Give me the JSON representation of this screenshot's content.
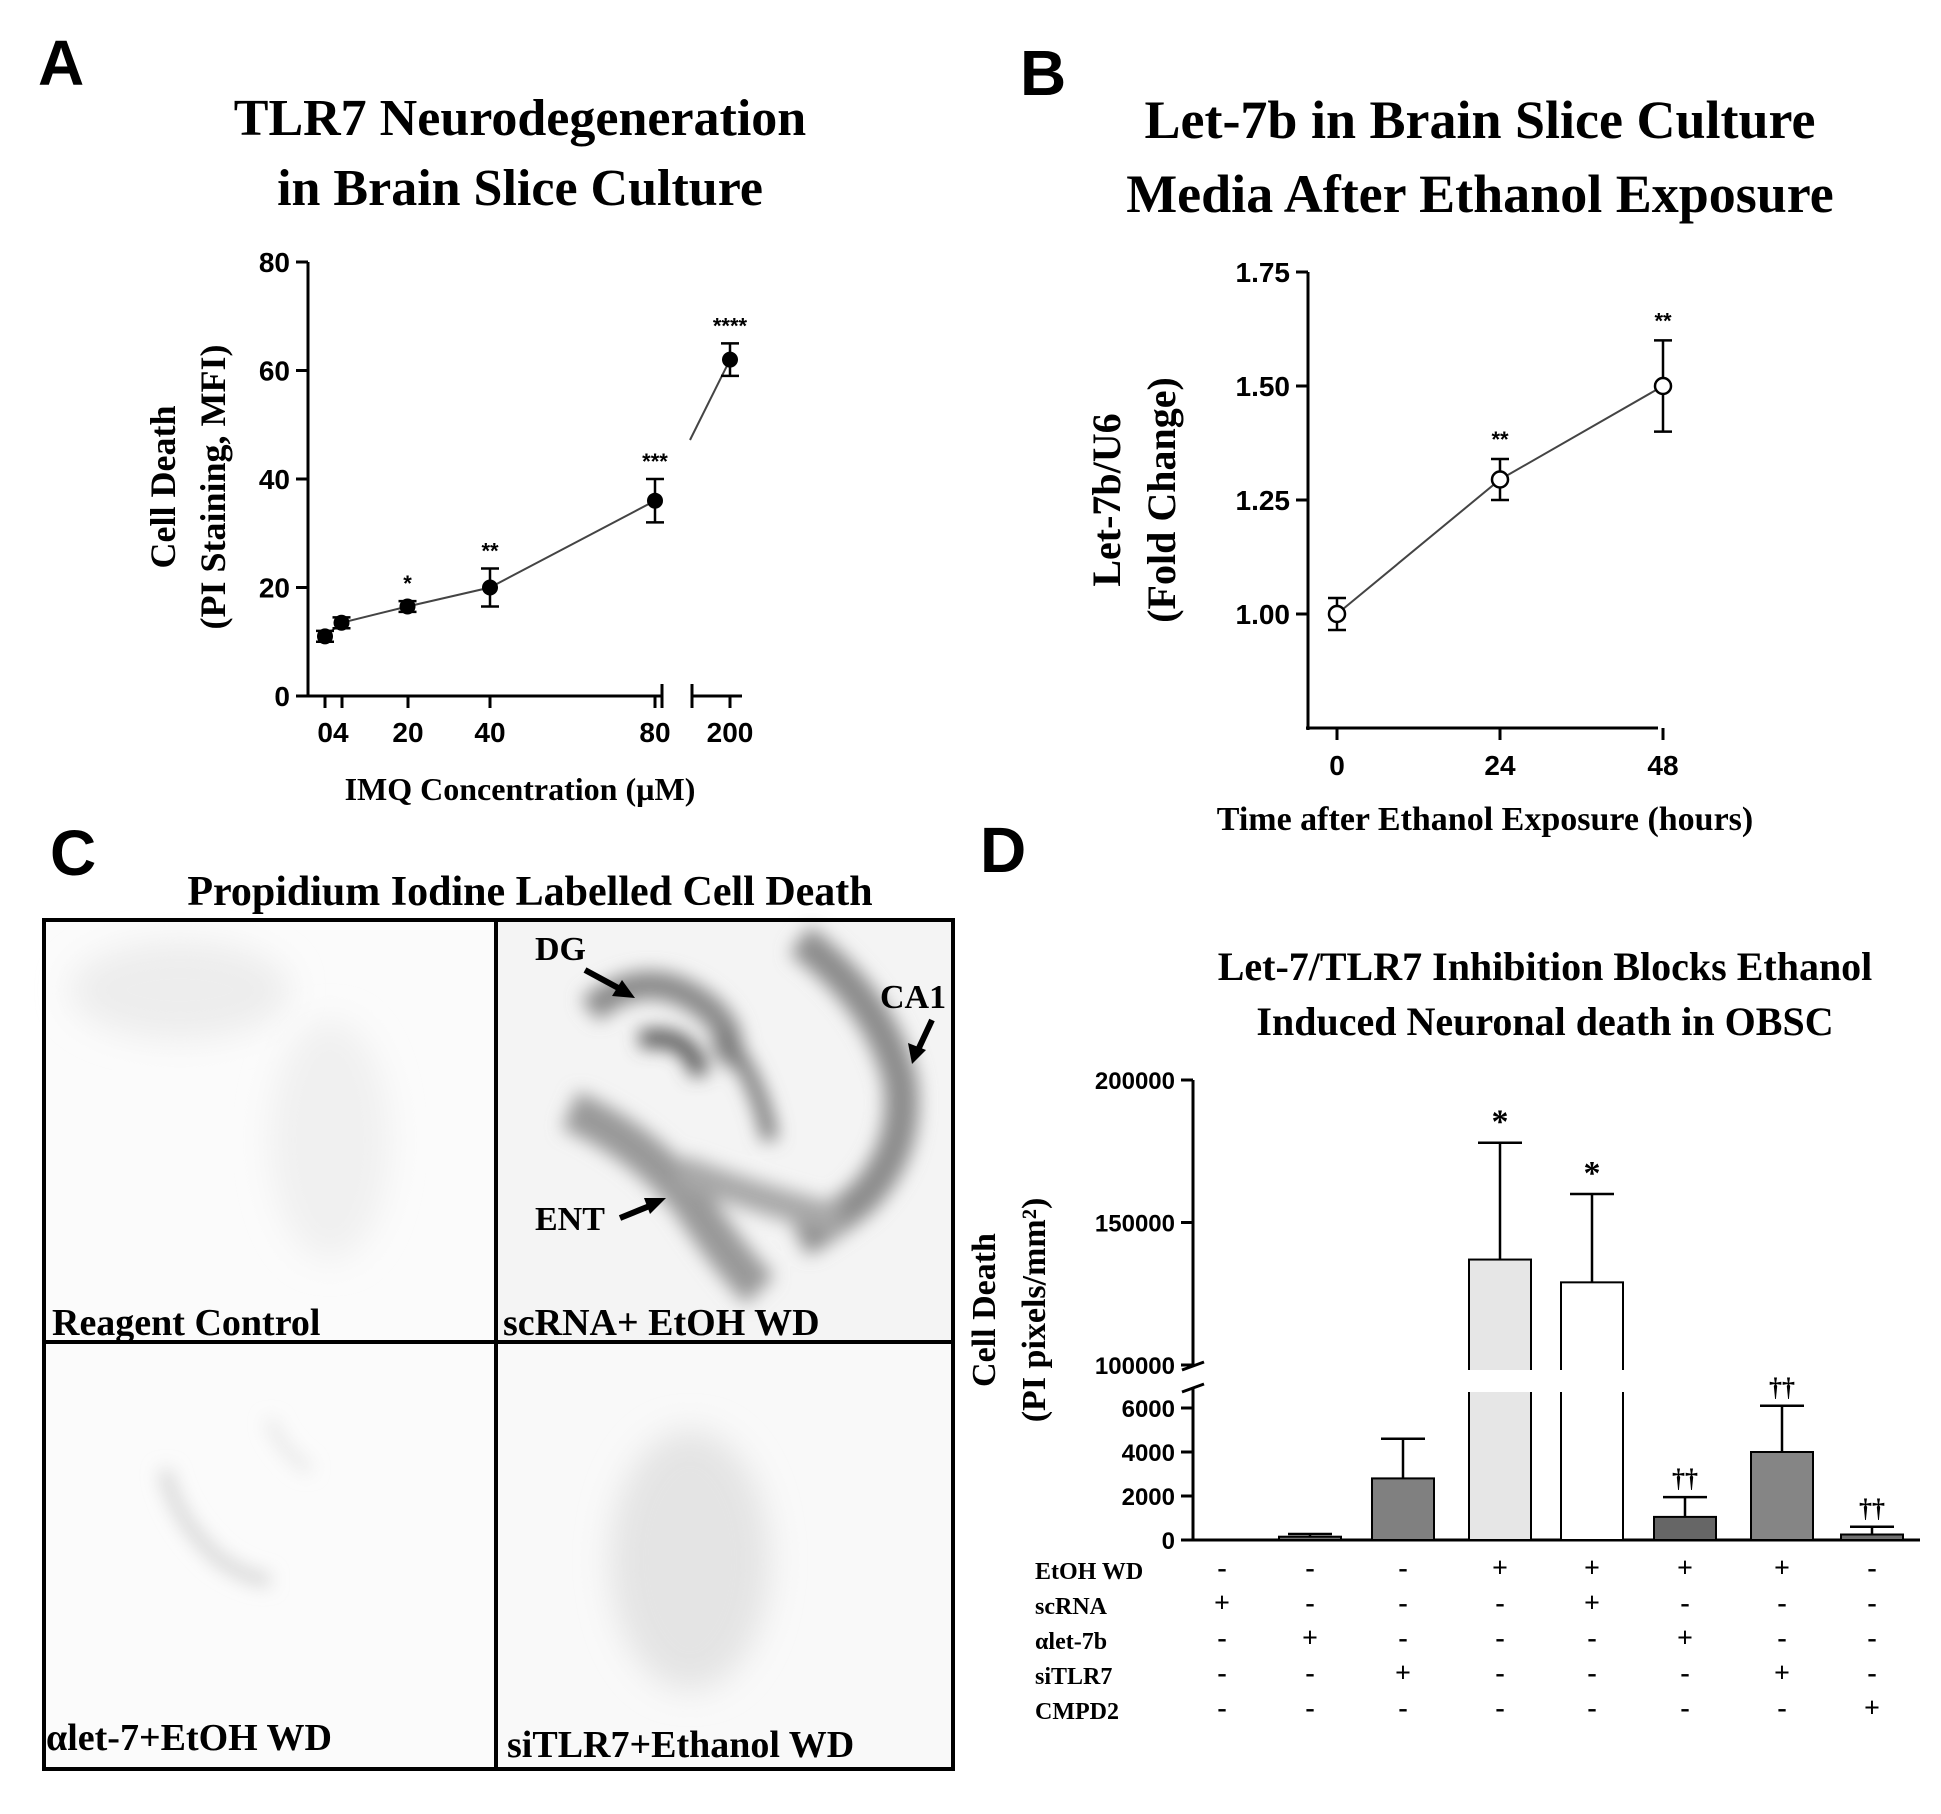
{
  "panels": {
    "A": {
      "letter": "A"
    },
    "B": {
      "letter": "B"
    },
    "C": {
      "letter": "C",
      "title": "Propidium Iodine Labelled Cell Death",
      "images": [
        {
          "label": "Reagent Control"
        },
        {
          "label": "scRNA+ EtOH WD"
        },
        {
          "label": "αlet-7+EtOH WD"
        },
        {
          "label": "siTLR7+Ethanol WD"
        }
      ],
      "annotations": [
        "DG",
        "CA1",
        "ENT"
      ]
    },
    "D": {
      "letter": "D"
    }
  },
  "chart_data": [
    {
      "id": "A",
      "type": "line",
      "title": [
        "TLR7 Neurodegeneration",
        "in Brain Slice Culture"
      ],
      "xlabel": "IMQ Concentration (µM)",
      "ylabel": [
        "Cell Death",
        "(PI Staining, MFI)"
      ],
      "ylim": [
        0,
        80
      ],
      "yticks": [
        0,
        20,
        40,
        60,
        80
      ],
      "x_tick_labels": [
        "04",
        "20",
        "40",
        "80",
        "200"
      ],
      "x_break": "between 80 and 200",
      "series": [
        {
          "name": "IMQ",
          "x": [
            0,
            4,
            20,
            40,
            80,
            200
          ],
          "y": [
            11,
            13.5,
            16.5,
            20,
            36,
            62
          ],
          "err": [
            1,
            1,
            1,
            3.5,
            4,
            3
          ],
          "sig": [
            "",
            "",
            "*",
            "**",
            "***",
            "****"
          ]
        }
      ]
    },
    {
      "id": "B",
      "type": "line",
      "title": [
        "Let-7b in Brain  Slice Culture",
        "Media After Ethanol  Exposure"
      ],
      "xlabel": "Time after Ethanol Exposure (hours)",
      "ylabel": [
        "Let-7b/U6",
        "(Fold Change)"
      ],
      "ylim": [
        0.75,
        1.75
      ],
      "yticks": [
        1.0,
        1.25,
        1.5,
        1.75
      ],
      "ytick_labels": [
        "1.00",
        "1.25",
        "1.50",
        "1.75"
      ],
      "xticks": [
        0,
        24,
        48
      ],
      "series": [
        {
          "name": "Let-7b",
          "x": [
            0,
            24,
            48
          ],
          "y": [
            1.0,
            1.295,
            1.5
          ],
          "err": [
            0.035,
            0.045,
            0.1
          ],
          "sig": [
            "",
            "**",
            "**"
          ]
        }
      ]
    },
    {
      "id": "D",
      "type": "bar",
      "title": [
        "Let-7/TLR7 Inhibition Blocks Ethanol",
        "Induced  Neuronal death in  OBSC"
      ],
      "ylabel": [
        "Cell Death",
        "(PI pixels/mm²)"
      ],
      "y_break": [
        6500,
        100000
      ],
      "lower_yticks": [
        0,
        2000,
        4000,
        6000
      ],
      "upper_yticks": [
        100000,
        150000,
        200000
      ],
      "values": [
        0,
        150,
        2800,
        137000,
        129000,
        1050,
        4000,
        250
      ],
      "errors": [
        0,
        120,
        1800,
        41000,
        31000,
        900,
        2100,
        350
      ],
      "bar_colors": [
        "#ffffff",
        "#707070",
        "#808080",
        "#e6e6e6",
        "#ffffff",
        "#666666",
        "#858585",
        "#707070"
      ],
      "sig": [
        "",
        "",
        "",
        "*",
        "*",
        "††",
        "††",
        "††"
      ],
      "conditions": [
        {
          "label": "EtOH WD",
          "signs": [
            "-",
            "-",
            "-",
            "+",
            "+",
            "+",
            "+",
            "-"
          ]
        },
        {
          "label": "scRNA",
          "signs": [
            "+",
            "-",
            "-",
            "-",
            "+",
            "-",
            "-",
            "-"
          ]
        },
        {
          "label": "αlet-7b",
          "signs": [
            "-",
            "+",
            "-",
            "-",
            "-",
            "+",
            "-",
            "-"
          ]
        },
        {
          "label": "siTLR7",
          "signs": [
            "-",
            "-",
            "+",
            "-",
            "-",
            "-",
            "+",
            "-"
          ]
        },
        {
          "label": "CMPD2",
          "signs": [
            "-",
            "-",
            "-",
            "-",
            "-",
            "-",
            "-",
            "+"
          ]
        }
      ]
    }
  ]
}
